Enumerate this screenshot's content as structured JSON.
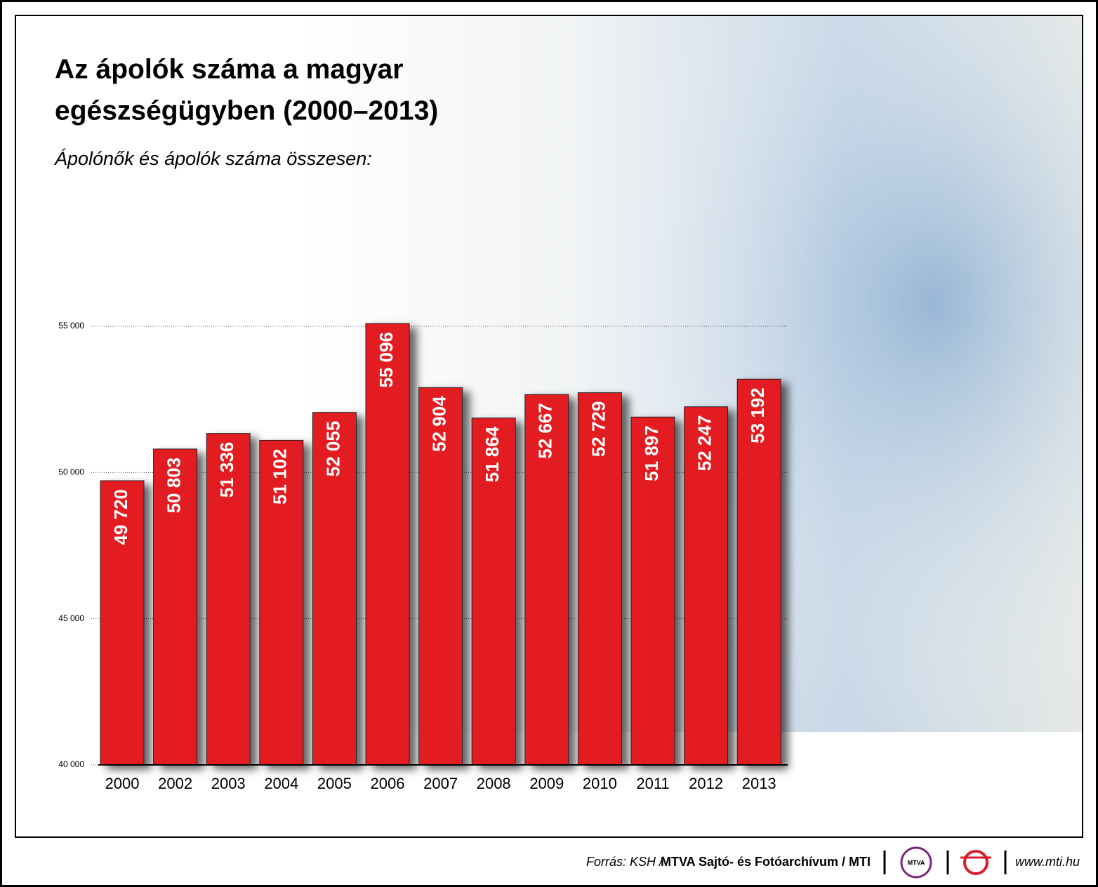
{
  "chart_data": {
    "type": "bar",
    "title_lines": [
      "Az ápolók száma a magyar",
      "egészségügyben (2000–2013)"
    ],
    "subtitle": "Ápolónők és ápolók száma összesen:",
    "categories": [
      "2000",
      "2002",
      "2003",
      "2004",
      "2005",
      "2006",
      "2007",
      "2008",
      "2009",
      "2010",
      "2011",
      "2012",
      "2013"
    ],
    "values": [
      49720,
      50803,
      51336,
      51102,
      52055,
      55096,
      52904,
      51864,
      52667,
      52729,
      51897,
      52247,
      53192
    ],
    "value_labels": [
      "49 720",
      "50 803",
      "51 336",
      "51 102",
      "52 055",
      "55 096",
      "52 904",
      "51 864",
      "52 667",
      "52 729",
      "51 897",
      "52 247",
      "53 192"
    ],
    "color": "#e31b23",
    "ylim": [
      40000,
      55000
    ],
    "yticks": [
      {
        "value": 40000,
        "label": "40 000"
      },
      {
        "value": 45000,
        "label": "45 000"
      },
      {
        "value": 50000,
        "label": "50 000"
      },
      {
        "value": 55000,
        "label": "55 000"
      }
    ],
    "grid": true
  },
  "footer": {
    "source_label": "Forrás: KSH /",
    "source_org": "MTVA Sajtó- és Fotóarchívum / MTI",
    "logo_text": "MTVA",
    "website": "www.mti.hu"
  }
}
